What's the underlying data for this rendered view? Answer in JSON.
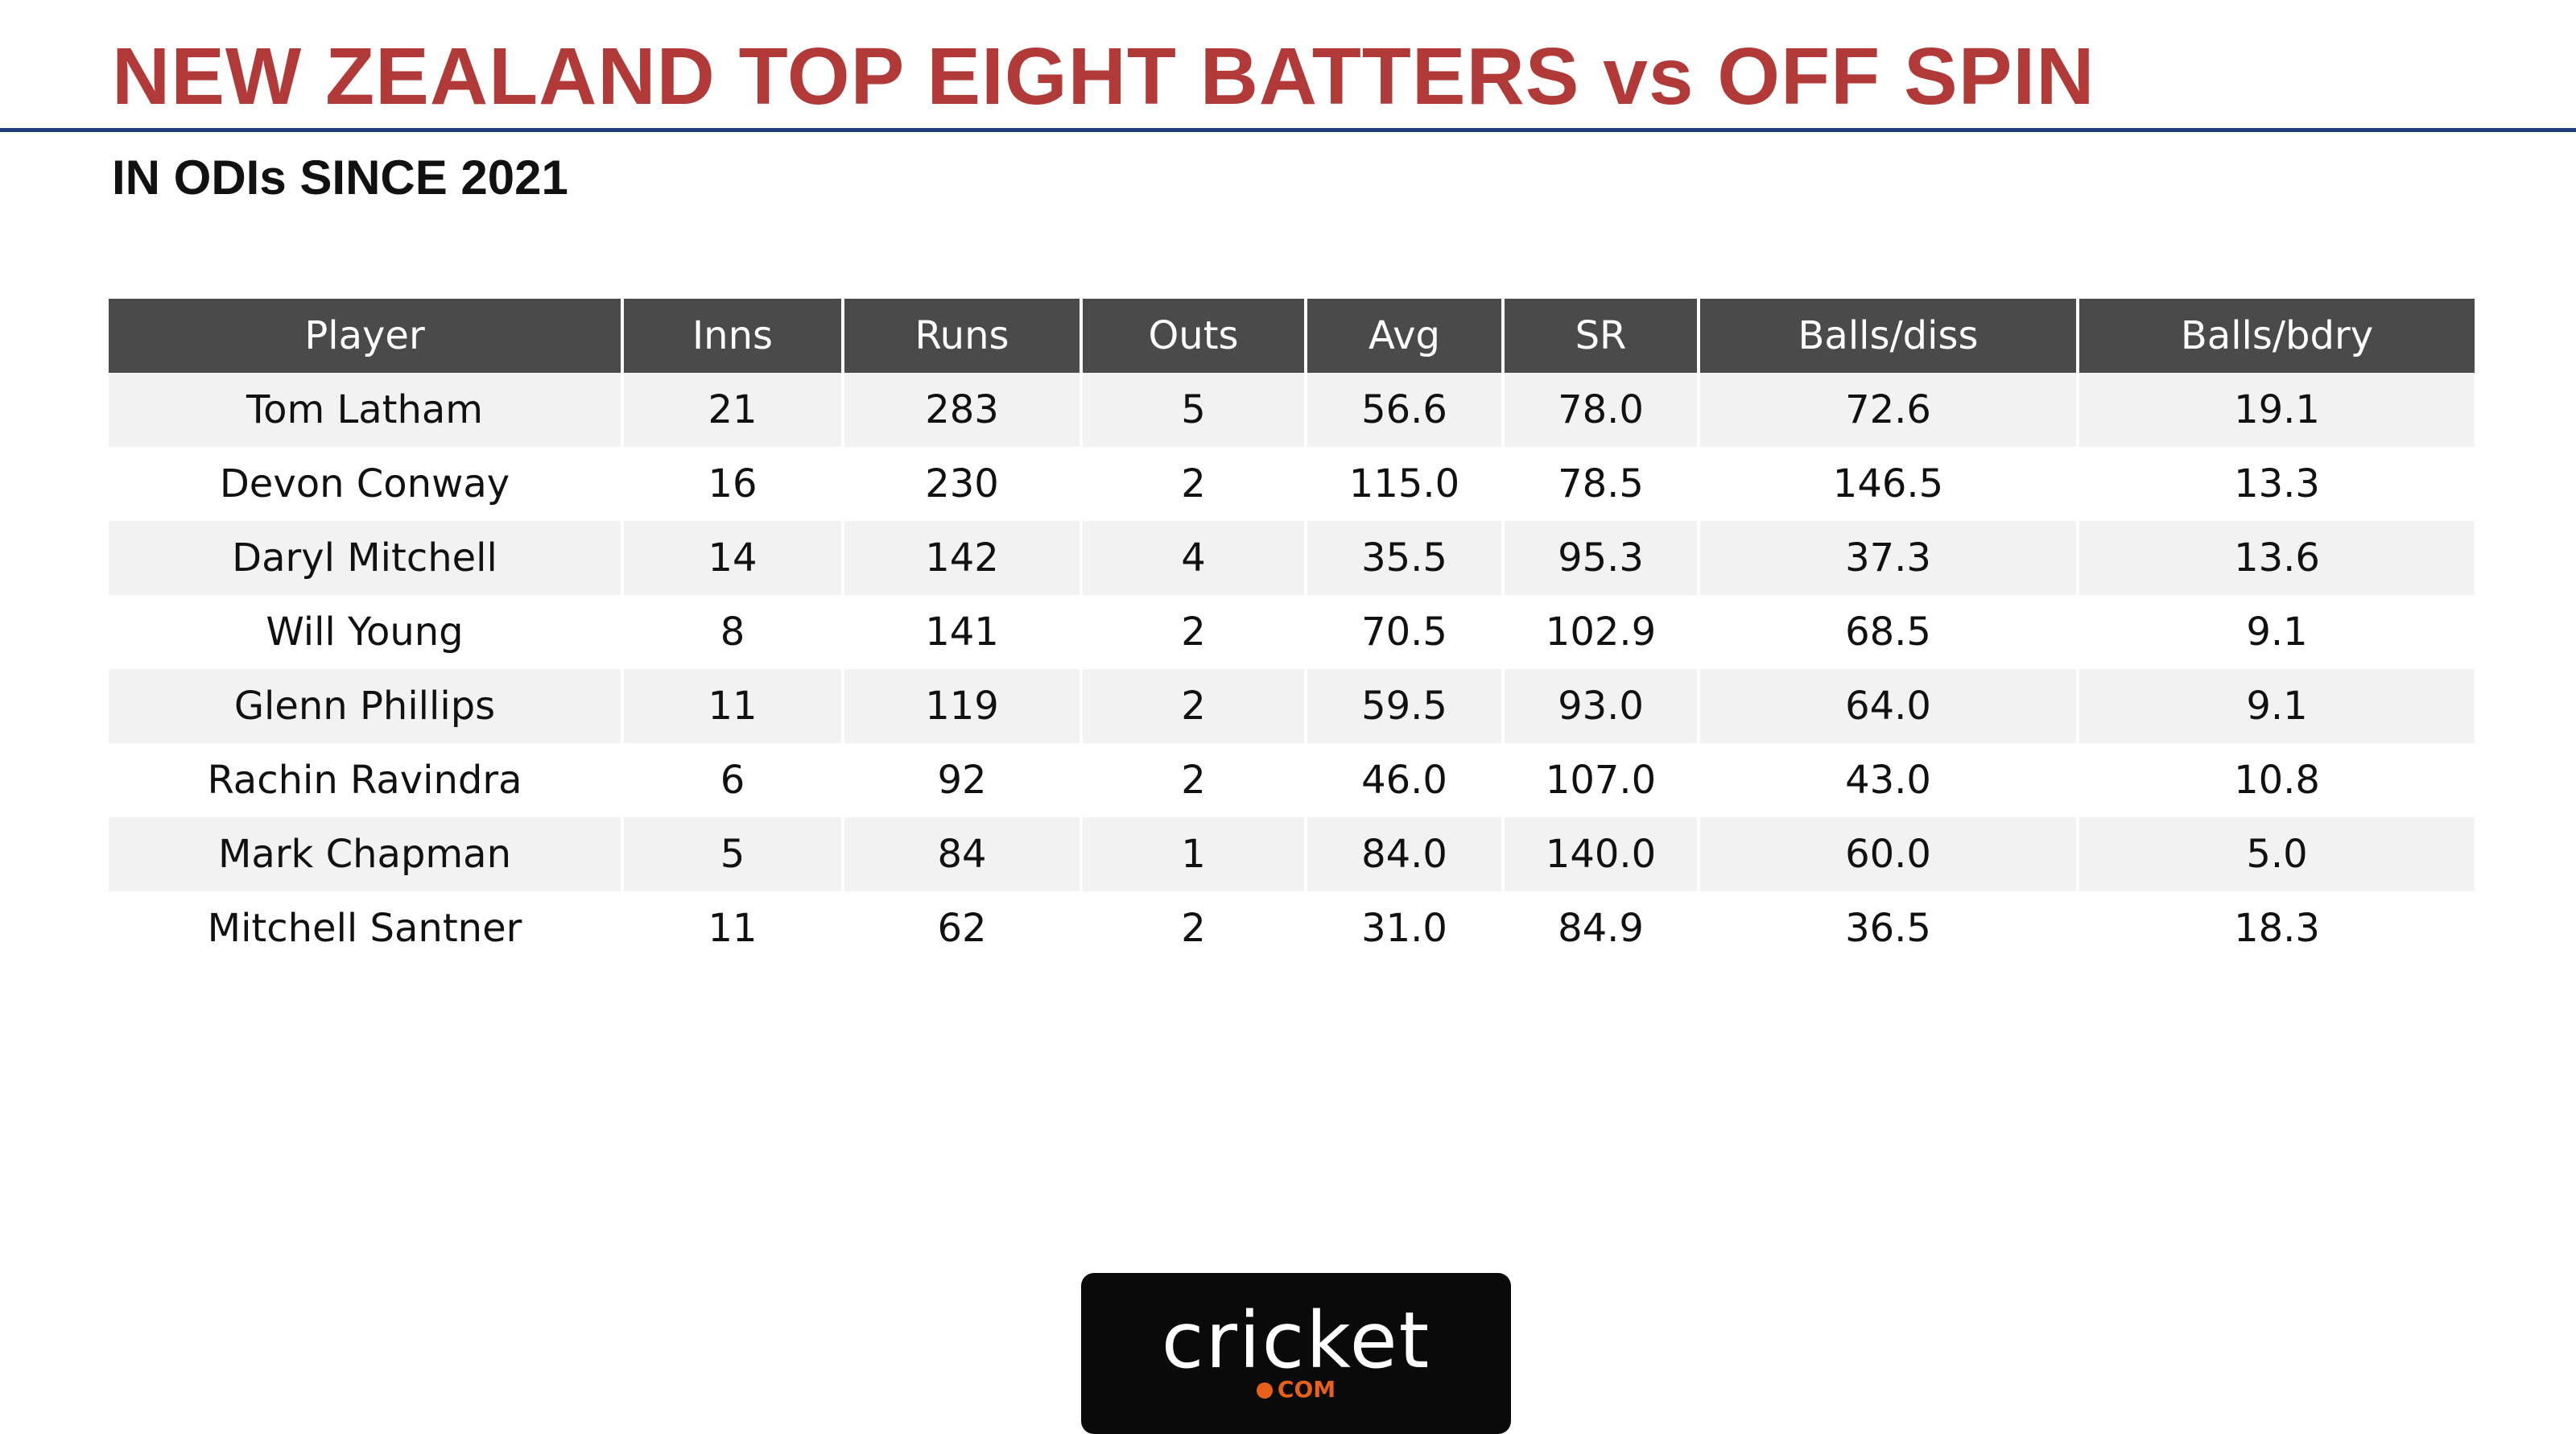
{
  "header": {
    "title": "NEW ZEALAND TOP EIGHT BATTERS vs OFF SPIN",
    "subtitle": "IN ODIs SINCE 2021"
  },
  "table": {
    "columns": [
      "Player",
      "Inns",
      "Runs",
      "Outs",
      "Avg",
      "SR",
      "Balls/diss",
      "Balls/bdry"
    ],
    "rows": [
      [
        "Tom Latham",
        "21",
        "283",
        "5",
        "56.6",
        "78.0",
        "72.6",
        "19.1"
      ],
      [
        "Devon Conway",
        "16",
        "230",
        "2",
        "115.0",
        "78.5",
        "146.5",
        "13.3"
      ],
      [
        "Daryl Mitchell",
        "14",
        "142",
        "4",
        "35.5",
        "95.3",
        "37.3",
        "13.6"
      ],
      [
        "Will Young",
        "8",
        "141",
        "2",
        "70.5",
        "102.9",
        "68.5",
        "9.1"
      ],
      [
        "Glenn Phillips",
        "11",
        "119",
        "2",
        "59.5",
        "93.0",
        "64.0",
        "9.1"
      ],
      [
        "Rachin Ravindra",
        "6",
        "92",
        "2",
        "46.0",
        "107.0",
        "43.0",
        "10.8"
      ],
      [
        "Mark Chapman",
        "5",
        "84",
        "1",
        "84.0",
        "140.0",
        "60.0",
        "5.0"
      ],
      [
        "Mitchell Santner",
        "11",
        "62",
        "2",
        "31.0",
        "84.9",
        "36.5",
        "18.3"
      ]
    ]
  },
  "logo": {
    "name": "cricket",
    "suffix": "COM"
  }
}
